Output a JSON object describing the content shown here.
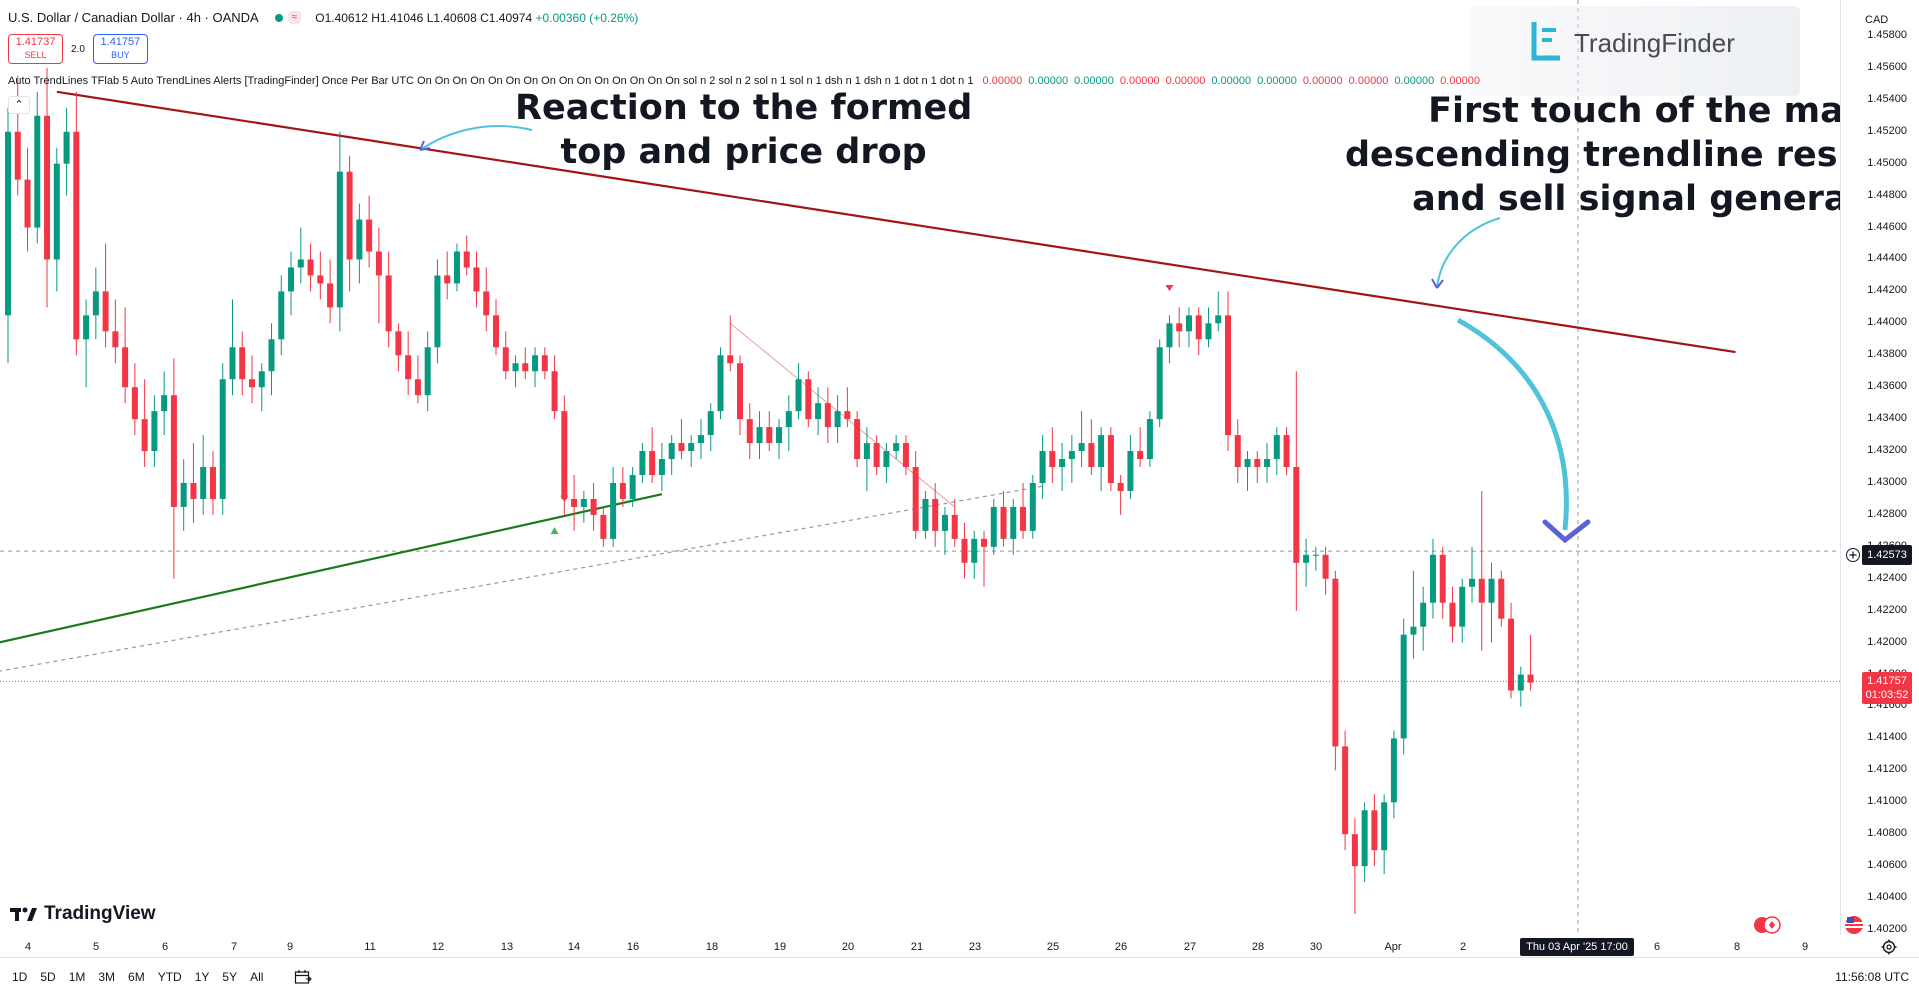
{
  "symbol": {
    "name": "U.S. Dollar / Canadian Dollar",
    "timeframe": "4h",
    "broker": "OANDA",
    "open": "O1.40612",
    "high": "H1.41046",
    "low": "L1.40608",
    "close": "C1.40974",
    "change": "+0.00360 (+0.26%)",
    "eq_badge": "≈"
  },
  "trade": {
    "sell_price": "1.41737",
    "sell_label": "SELL",
    "spread": "2.0",
    "buy_price": "1.41757",
    "buy_label": "BUY"
  },
  "indicator": {
    "text": "Auto TrendLines TFlab 5 Auto TrendLines Alerts [TradingFinder] Once Per Bar UTC On On On On On On On On On On On On On On On sol n 2 sol n 2 sol n 1 sol n 1 dsh n 1 dsh n 1 dot n 1 dot n 1",
    "values": [
      "0.00000",
      "0.00000",
      "0.00000",
      "0.00000",
      "0.00000",
      "0.00000",
      "0.00000",
      "0.00000",
      "0.00000",
      "0.00000",
      "0.00000"
    ],
    "value_colors": [
      "#f23645",
      "#089981",
      "#089981",
      "#f23645",
      "#f23645",
      "#089981",
      "#089981",
      "#f23645",
      "#f23645",
      "#089981",
      "#f23645"
    ]
  },
  "annotations": {
    "left_line1": "Reaction to the formed",
    "left_line2": "top and price drop",
    "right_line1": "First touch of the major",
    "right_line2": "descending trendline resistance",
    "right_line3": "and sell signal generated"
  },
  "logo": {
    "text": "TradingFinder"
  },
  "tradingview": {
    "text": "TradingView"
  },
  "price_axis": {
    "currency": "CAD",
    "ticks": [
      "1.45800",
      "1.45600",
      "1.45400",
      "1.45200",
      "1.45000",
      "1.44800",
      "1.44600",
      "1.44400",
      "1.44200",
      "1.44000",
      "1.43800",
      "1.43600",
      "1.43400",
      "1.43200",
      "1.43000",
      "1.42800",
      "1.42600",
      "1.42400",
      "1.42200",
      "1.42000",
      "1.41800",
      "1.41600",
      "1.41400",
      "1.41200",
      "1.41000",
      "1.40800",
      "1.40600",
      "1.40400",
      "1.40200"
    ],
    "crosshair_price": "1.42573",
    "current_price": "1.41757",
    "countdown": "01:03:52"
  },
  "time_axis": {
    "ticks": [
      "4",
      "5",
      "6",
      "7",
      "9",
      "11",
      "12",
      "13",
      "14",
      "16",
      "18",
      "19",
      "20",
      "21",
      "23",
      "25",
      "26",
      "27",
      "28",
      "30",
      "Apr",
      "2",
      "6",
      "8",
      "9"
    ],
    "crosshair_date": "Thu 03 Apr '25   17:00"
  },
  "bottom_toolbar": {
    "ranges": [
      "1D",
      "5D",
      "1M",
      "3M",
      "6M",
      "YTD",
      "1Y",
      "5Y",
      "All"
    ],
    "clock": "11:56:08 UTC"
  },
  "colors": {
    "up": "#089981",
    "down": "#f23645",
    "resistance_line": "#a31515",
    "support_line": "#1b7a1b",
    "arrow": "#4fc3d9"
  },
  "chart_data": {
    "type": "candlestick",
    "y_range": [
      1.402,
      1.459
    ],
    "candles": [
      [
        1.4405,
        1.4535,
        1.4375,
        1.452
      ],
      [
        1.452,
        1.4555,
        1.448,
        1.449
      ],
      [
        1.449,
        1.451,
        1.4445,
        1.446
      ],
      [
        1.446,
        1.4545,
        1.445,
        1.453
      ],
      [
        1.453,
        1.456,
        1.441,
        1.444
      ],
      [
        1.444,
        1.451,
        1.442,
        1.45
      ],
      [
        1.45,
        1.4535,
        1.448,
        1.452
      ],
      [
        1.452,
        1.4545,
        1.438,
        1.439
      ],
      [
        1.439,
        1.4415,
        1.436,
        1.4405
      ],
      [
        1.4405,
        1.4435,
        1.439,
        1.442
      ],
      [
        1.442,
        1.445,
        1.4385,
        1.4395
      ],
      [
        1.4395,
        1.4415,
        1.4375,
        1.4385
      ],
      [
        1.4385,
        1.441,
        1.435,
        1.436
      ],
      [
        1.436,
        1.4375,
        1.433,
        1.434
      ],
      [
        1.434,
        1.4365,
        1.431,
        1.432
      ],
      [
        1.432,
        1.4355,
        1.431,
        1.4345
      ],
      [
        1.4345,
        1.437,
        1.433,
        1.4355
      ],
      [
        1.4355,
        1.4378,
        1.424,
        1.4285
      ],
      [
        1.4285,
        1.4315,
        1.427,
        1.43
      ],
      [
        1.43,
        1.4325,
        1.4275,
        1.429
      ],
      [
        1.429,
        1.433,
        1.428,
        1.431
      ],
      [
        1.431,
        1.432,
        1.428,
        1.429
      ],
      [
        1.429,
        1.4375,
        1.428,
        1.4365
      ],
      [
        1.4365,
        1.4415,
        1.4355,
        1.4385
      ],
      [
        1.4385,
        1.4395,
        1.4355,
        1.4365
      ],
      [
        1.4365,
        1.438,
        1.435,
        1.436
      ],
      [
        1.436,
        1.4375,
        1.4345,
        1.437
      ],
      [
        1.437,
        1.44,
        1.4355,
        1.439
      ],
      [
        1.439,
        1.443,
        1.438,
        1.442
      ],
      [
        1.442,
        1.4445,
        1.4405,
        1.4435
      ],
      [
        1.4435,
        1.446,
        1.4425,
        1.444
      ],
      [
        1.444,
        1.445,
        1.442,
        1.443
      ],
      [
        1.443,
        1.4445,
        1.4415,
        1.4425
      ],
      [
        1.4425,
        1.444,
        1.44,
        1.441
      ],
      [
        1.441,
        1.452,
        1.4395,
        1.4495
      ],
      [
        1.4495,
        1.4505,
        1.442,
        1.444
      ],
      [
        1.444,
        1.4475,
        1.4425,
        1.4465
      ],
      [
        1.4465,
        1.448,
        1.4435,
        1.4445
      ],
      [
        1.4445,
        1.446,
        1.44,
        1.443
      ],
      [
        1.443,
        1.4445,
        1.4385,
        1.4395
      ],
      [
        1.4395,
        1.44,
        1.437,
        1.438
      ],
      [
        1.438,
        1.4395,
        1.4355,
        1.4365
      ],
      [
        1.4365,
        1.438,
        1.435,
        1.4355
      ],
      [
        1.4355,
        1.4395,
        1.4345,
        1.4385
      ],
      [
        1.4385,
        1.444,
        1.4375,
        1.443
      ],
      [
        1.443,
        1.4445,
        1.4415,
        1.4425
      ],
      [
        1.4425,
        1.445,
        1.442,
        1.4445
      ],
      [
        1.4445,
        1.4455,
        1.443,
        1.4435
      ],
      [
        1.4435,
        1.4445,
        1.441,
        1.442
      ],
      [
        1.442,
        1.4435,
        1.4395,
        1.4405
      ],
      [
        1.4405,
        1.4415,
        1.438,
        1.4385
      ],
      [
        1.4385,
        1.4395,
        1.4365,
        1.437
      ],
      [
        1.437,
        1.438,
        1.436,
        1.4375
      ],
      [
        1.4375,
        1.4385,
        1.4365,
        1.437
      ],
      [
        1.437,
        1.4385,
        1.436,
        1.438
      ],
      [
        1.438,
        1.4385,
        1.4365,
        1.437
      ],
      [
        1.437,
        1.438,
        1.434,
        1.4345
      ],
      [
        1.4345,
        1.4355,
        1.428,
        1.429
      ],
      [
        1.429,
        1.4305,
        1.427,
        1.4285
      ],
      [
        1.4285,
        1.4295,
        1.4275,
        1.429
      ],
      [
        1.429,
        1.43,
        1.427,
        1.428
      ],
      [
        1.428,
        1.4285,
        1.426,
        1.4265
      ],
      [
        1.4265,
        1.431,
        1.426,
        1.43
      ],
      [
        1.43,
        1.431,
        1.4285,
        1.429
      ],
      [
        1.429,
        1.431,
        1.4285,
        1.4305
      ],
      [
        1.4305,
        1.4325,
        1.43,
        1.432
      ],
      [
        1.432,
        1.4335,
        1.43,
        1.4305
      ],
      [
        1.4305,
        1.4325,
        1.4295,
        1.4315
      ],
      [
        1.4315,
        1.433,
        1.4305,
        1.4325
      ],
      [
        1.4325,
        1.434,
        1.4315,
        1.432
      ],
      [
        1.432,
        1.433,
        1.431,
        1.4325
      ],
      [
        1.4325,
        1.434,
        1.4315,
        1.433
      ],
      [
        1.433,
        1.435,
        1.432,
        1.4345
      ],
      [
        1.4345,
        1.4385,
        1.434,
        1.438
      ],
      [
        1.438,
        1.4405,
        1.437,
        1.4375
      ],
      [
        1.4375,
        1.438,
        1.433,
        1.434
      ],
      [
        1.434,
        1.435,
        1.4315,
        1.4325
      ],
      [
        1.4325,
        1.4345,
        1.4315,
        1.4335
      ],
      [
        1.4335,
        1.4345,
        1.432,
        1.4325
      ],
      [
        1.4325,
        1.434,
        1.4315,
        1.4335
      ],
      [
        1.4335,
        1.4355,
        1.432,
        1.4345
      ],
      [
        1.4345,
        1.4375,
        1.434,
        1.4365
      ],
      [
        1.4365,
        1.437,
        1.4335,
        1.434
      ],
      [
        1.434,
        1.436,
        1.433,
        1.435
      ],
      [
        1.435,
        1.436,
        1.4325,
        1.4335
      ],
      [
        1.4335,
        1.4355,
        1.4325,
        1.4345
      ],
      [
        1.4345,
        1.436,
        1.4335,
        1.434
      ],
      [
        1.434,
        1.4345,
        1.431,
        1.4315
      ],
      [
        1.4315,
        1.4335,
        1.4295,
        1.4325
      ],
      [
        1.4325,
        1.433,
        1.4305,
        1.431
      ],
      [
        1.431,
        1.4325,
        1.43,
        1.432
      ],
      [
        1.432,
        1.433,
        1.4315,
        1.4325
      ],
      [
        1.4325,
        1.433,
        1.4305,
        1.431
      ],
      [
        1.431,
        1.432,
        1.4265,
        1.427
      ],
      [
        1.427,
        1.4295,
        1.4265,
        1.429
      ],
      [
        1.429,
        1.43,
        1.426,
        1.427
      ],
      [
        1.427,
        1.4285,
        1.4255,
        1.428
      ],
      [
        1.428,
        1.429,
        1.426,
        1.4265
      ],
      [
        1.4265,
        1.4275,
        1.424,
        1.425
      ],
      [
        1.425,
        1.427,
        1.424,
        1.4265
      ],
      [
        1.4265,
        1.427,
        1.4235,
        1.426
      ],
      [
        1.426,
        1.429,
        1.4255,
        1.4285
      ],
      [
        1.4285,
        1.4295,
        1.426,
        1.4265
      ],
      [
        1.4265,
        1.429,
        1.4255,
        1.4285
      ],
      [
        1.4285,
        1.43,
        1.4265,
        1.427
      ],
      [
        1.427,
        1.4305,
        1.4265,
        1.43
      ],
      [
        1.43,
        1.433,
        1.429,
        1.432
      ],
      [
        1.432,
        1.4335,
        1.43,
        1.431
      ],
      [
        1.431,
        1.4325,
        1.4295,
        1.4315
      ],
      [
        1.4315,
        1.433,
        1.43,
        1.432
      ],
      [
        1.432,
        1.4345,
        1.431,
        1.4325
      ],
      [
        1.4325,
        1.434,
        1.4305,
        1.431
      ],
      [
        1.431,
        1.4335,
        1.4295,
        1.433
      ],
      [
        1.433,
        1.4335,
        1.4295,
        1.43
      ],
      [
        1.43,
        1.4305,
        1.428,
        1.4295
      ],
      [
        1.4295,
        1.433,
        1.429,
        1.432
      ],
      [
        1.432,
        1.4335,
        1.431,
        1.4315
      ],
      [
        1.4315,
        1.4345,
        1.431,
        1.434
      ],
      [
        1.434,
        1.439,
        1.4335,
        1.4385
      ],
      [
        1.4385,
        1.4405,
        1.4375,
        1.44
      ],
      [
        1.44,
        1.441,
        1.4385,
        1.4395
      ],
      [
        1.4395,
        1.441,
        1.4385,
        1.4405
      ],
      [
        1.4405,
        1.441,
        1.438,
        1.439
      ],
      [
        1.439,
        1.441,
        1.4385,
        1.44
      ],
      [
        1.44,
        1.442,
        1.4395,
        1.4405
      ],
      [
        1.4405,
        1.442,
        1.432,
        1.433
      ],
      [
        1.433,
        1.434,
        1.43,
        1.431
      ],
      [
        1.431,
        1.432,
        1.4295,
        1.4315
      ],
      [
        1.4315,
        1.432,
        1.43,
        1.431
      ],
      [
        1.431,
        1.4325,
        1.43,
        1.4315
      ],
      [
        1.4315,
        1.4335,
        1.4305,
        1.433
      ],
      [
        1.433,
        1.4335,
        1.4305,
        1.431
      ],
      [
        1.431,
        1.437,
        1.422,
        1.425
      ],
      [
        1.425,
        1.4265,
        1.4235,
        1.4255
      ],
      [
        1.4255,
        1.426,
        1.4245,
        1.4255
      ],
      [
        1.4255,
        1.426,
        1.423,
        1.424
      ],
      [
        1.424,
        1.4245,
        1.412,
        1.4135
      ],
      [
        1.4135,
        1.4145,
        1.407,
        1.408
      ],
      [
        1.408,
        1.409,
        1.403,
        1.406
      ],
      [
        1.406,
        1.41,
        1.405,
        1.4095
      ],
      [
        1.4095,
        1.4105,
        1.406,
        1.407
      ],
      [
        1.407,
        1.4105,
        1.4055,
        1.41
      ],
      [
        1.41,
        1.4145,
        1.409,
        1.414
      ],
      [
        1.414,
        1.4215,
        1.413,
        1.4205
      ],
      [
        1.4205,
        1.4245,
        1.419,
        1.421
      ],
      [
        1.421,
        1.4235,
        1.4195,
        1.4225
      ],
      [
        1.4225,
        1.4265,
        1.4215,
        1.4255
      ],
      [
        1.4255,
        1.426,
        1.4215,
        1.4225
      ],
      [
        1.4225,
        1.4235,
        1.42,
        1.421
      ],
      [
        1.421,
        1.424,
        1.42,
        1.4235
      ],
      [
        1.4235,
        1.426,
        1.4225,
        1.424
      ],
      [
        1.424,
        1.4295,
        1.4195,
        1.4225
      ],
      [
        1.4225,
        1.425,
        1.42,
        1.424
      ],
      [
        1.424,
        1.4245,
        1.421,
        1.4215
      ],
      [
        1.4215,
        1.4225,
        1.4165,
        1.417
      ],
      [
        1.417,
        1.4185,
        1.416,
        1.418
      ],
      [
        1.418,
        1.4205,
        1.417,
        1.4175
      ]
    ],
    "trendlines": [
      {
        "name": "resistance",
        "from": [
          5,
          1.4545
        ],
        "to": [
          177,
          1.4382
        ]
      },
      {
        "name": "support",
        "from": [
          -1,
          1.42
        ],
        "to": [
          67,
          1.4293
        ]
      },
      {
        "name": "support-extension",
        "from": [
          -1,
          1.4182
        ],
        "to": [
          106,
          1.4298
        ]
      }
    ]
  }
}
